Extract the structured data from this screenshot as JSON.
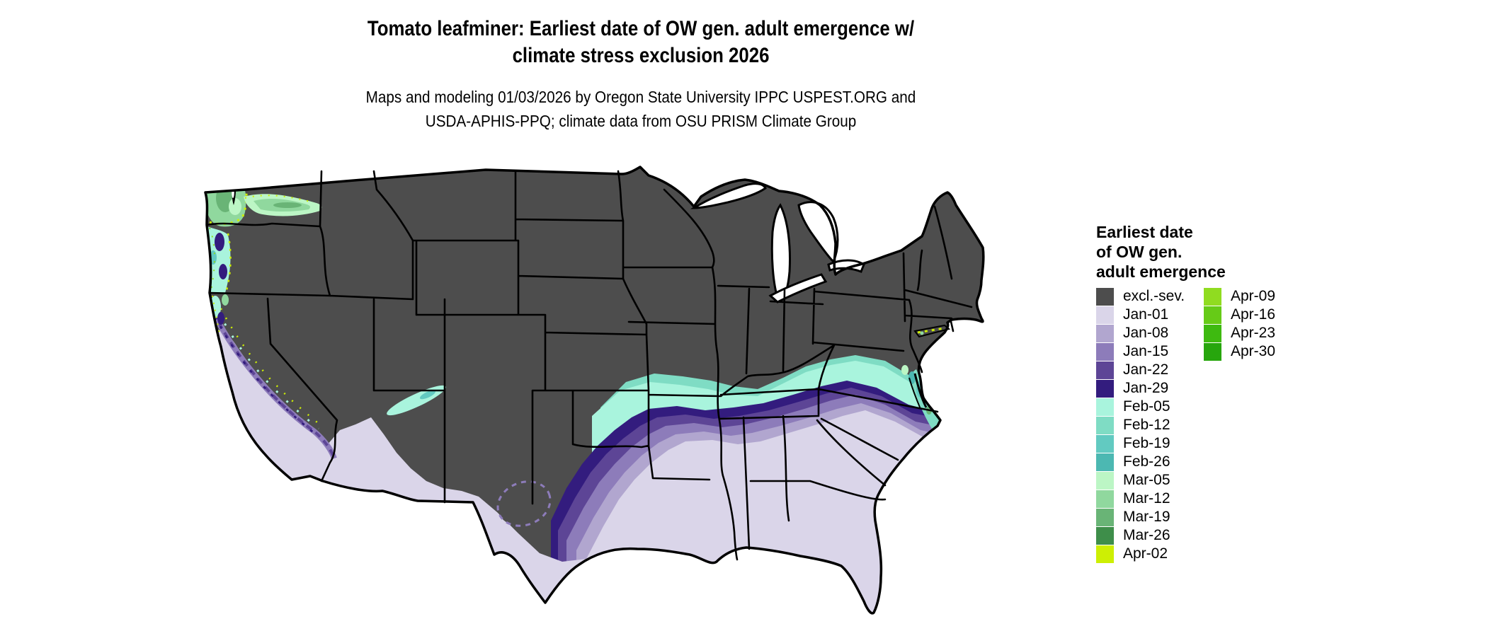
{
  "title": {
    "line1": "Tomato leafminer: Earliest date of OW gen. adult emergence w/",
    "line2": "climate stress exclusion 2026"
  },
  "subtitle": {
    "line1": "Maps and modeling 01/03/2026 by Oregon State University IPPC USPEST.ORG and",
    "line2": "USDA-APHIS-PPQ; climate data from OSU PRISM Climate Group"
  },
  "legend": {
    "title_lines": [
      "Earliest date",
      "of OW gen.",
      "adult emergence"
    ],
    "column1": [
      {
        "label": "excl.-sev.",
        "color": "#4d4d4d"
      },
      {
        "label": "Jan-01",
        "color": "#dad5e9"
      },
      {
        "label": "Jan-08",
        "color": "#b1a6cf"
      },
      {
        "label": "Jan-15",
        "color": "#8d7cba"
      },
      {
        "label": "Jan-22",
        "color": "#5d4596"
      },
      {
        "label": "Jan-29",
        "color": "#331c7e"
      },
      {
        "label": "Feb-05",
        "color": "#a9f4dd"
      },
      {
        "label": "Feb-12",
        "color": "#7fdcc4"
      },
      {
        "label": "Feb-19",
        "color": "#62cac1"
      },
      {
        "label": "Feb-26",
        "color": "#4cb8b2"
      },
      {
        "label": "Mar-05",
        "color": "#bcf6c5"
      },
      {
        "label": "Mar-12",
        "color": "#90d89e"
      },
      {
        "label": "Mar-19",
        "color": "#69b476"
      },
      {
        "label": "Mar-26",
        "color": "#3e8e4a"
      },
      {
        "label": "Apr-02",
        "color": "#cdef04"
      }
    ],
    "column2": [
      {
        "label": "Apr-09",
        "color": "#90dc20"
      },
      {
        "label": "Apr-16",
        "color": "#66cb17"
      },
      {
        "label": "Apr-23",
        "color": "#3eba10"
      },
      {
        "label": "Apr-30",
        "color": "#27a60d"
      }
    ]
  },
  "palette": {
    "excl": "#4d4d4d",
    "jan01": "#dad5e9",
    "jan08": "#b1a6cf",
    "jan15": "#8d7cba",
    "jan22": "#5d4596",
    "jan29": "#331c7e",
    "feb05": "#a9f4dd",
    "feb12": "#7fdcc4",
    "feb19": "#62cac1",
    "feb26": "#4cb8b2",
    "mar05": "#bcf6c5",
    "mar12": "#90d89e",
    "mar19": "#69b476",
    "mar26": "#3e8e4a",
    "apr02": "#cdef04",
    "apr09": "#90dc20",
    "apr16": "#66cb17",
    "apr23": "#3eba10",
    "apr30": "#27a60d",
    "water": "#ffffff",
    "border": "#000000"
  },
  "chart_data": {
    "type": "heatmap",
    "subtype": "choropleth-raster-map",
    "region": "Contiguous United States",
    "title": "Tomato leafminer: Earliest date of OW gen. adult emergence w/ climate stress exclusion 2026",
    "variable": "Earliest date of OW gen. adult emergence",
    "legend_position": "right",
    "classes": [
      {
        "label": "excl.-sev.",
        "color": "#4d4d4d"
      },
      {
        "label": "Jan-01",
        "color": "#dad5e9"
      },
      {
        "label": "Jan-08",
        "color": "#b1a6cf"
      },
      {
        "label": "Jan-15",
        "color": "#8d7cba"
      },
      {
        "label": "Jan-22",
        "color": "#5d4596"
      },
      {
        "label": "Jan-29",
        "color": "#331c7e"
      },
      {
        "label": "Feb-05",
        "color": "#a9f4dd"
      },
      {
        "label": "Feb-12",
        "color": "#7fdcc4"
      },
      {
        "label": "Feb-19",
        "color": "#62cac1"
      },
      {
        "label": "Feb-26",
        "color": "#4cb8b2"
      },
      {
        "label": "Mar-05",
        "color": "#bcf6c5"
      },
      {
        "label": "Mar-12",
        "color": "#90d89e"
      },
      {
        "label": "Mar-19",
        "color": "#69b476"
      },
      {
        "label": "Mar-26",
        "color": "#3e8e4a"
      },
      {
        "label": "Apr-02",
        "color": "#cdef04"
      },
      {
        "label": "Apr-09",
        "color": "#90dc20"
      },
      {
        "label": "Apr-16",
        "color": "#66cb17"
      },
      {
        "label": "Apr-23",
        "color": "#3eba10"
      },
      {
        "label": "Apr-30",
        "color": "#27a60d"
      }
    ],
    "regions_summary": [
      {
        "area": "Northern US / Rockies / high plains / interior West",
        "class": "excl.-sev."
      },
      {
        "area": "Texas, Gulf coast states, Florida, Southeast coastal plain, coastal & central California, low deserts of AZ/NM",
        "class": "Jan-01"
      },
      {
        "area": "Transition bands across southern plains and Deep South piedmont",
        "class": "Jan-08 to Jan-29"
      },
      {
        "area": "Wide band through KY/TN, Ozarks, mid-Atlantic coast",
        "class": "Feb-05 to Feb-26"
      },
      {
        "area": "Western Washington, Willamette Valley, Columbia Basin, mid-Atlantic shore",
        "class": "Mar-05 to Mar-26"
      },
      {
        "area": "Scattered speckles: Pacific Northwest edges, Sierra crest fringe, Long Island / southern New England shore",
        "class": "Apr-02 to Apr-30"
      }
    ]
  }
}
